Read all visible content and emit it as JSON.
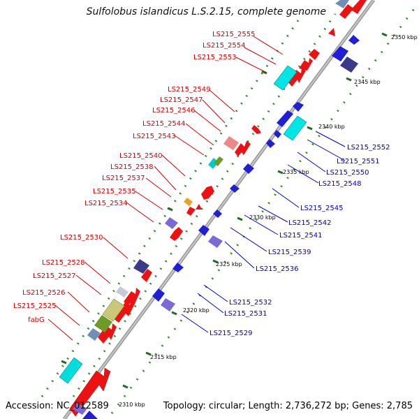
{
  "title": "Sulfolobus islandicus L.S.2.15, complete genome",
  "footer": {
    "accession": "Accession: NC_012589",
    "info": "Topology: circular; Length: 2,736,272 bp; Genes: 2,785"
  },
  "colors": {
    "label_top": "#d40000",
    "label_bottom": "#0000cc",
    "backbone": "#808080",
    "dots": "#2e8b2e"
  },
  "scale_labels": [
    "2310 kbp",
    "2315 kbp",
    "2320 kbp",
    "2325 kbp",
    "2330 kbp",
    "2335 kbp",
    "2340 kbp",
    "2345 kbp",
    "2350 kbp"
  ],
  "labels_top": [
    "LS215_2555",
    "LS215_2554",
    "LS215_2553",
    "LS215_2549",
    "LS215_2547",
    "LS215_2546",
    "LS215_2544",
    "LS215_2543",
    "LS215_2540",
    "LS215_2538",
    "LS215_2537",
    "LS215_2535",
    "LS215_2534",
    "LS215_2530",
    "LS215_2528",
    "LS215_2527",
    "LS215_2526",
    "LS215_2525",
    "fabG"
  ],
  "labels_bottom": [
    "LS215_2552",
    "LS215_2551",
    "LS215_2550",
    "LS215_2548",
    "LS215_2545",
    "LS215_2542",
    "LS215_2541",
    "LS215_2539",
    "LS215_2536",
    "LS215_2532",
    "LS215_2531",
    "LS215_2529"
  ]
}
